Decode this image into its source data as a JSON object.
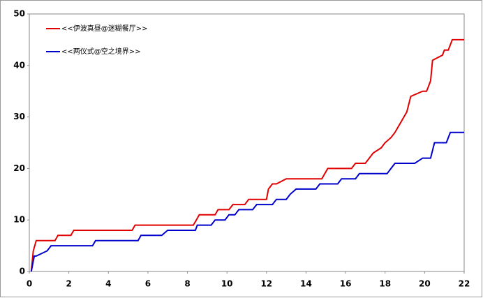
{
  "chart_data": {
    "type": "line",
    "xlim": [
      0,
      22
    ],
    "xticks": [
      0,
      2,
      4,
      6,
      8,
      10,
      12,
      14,
      16,
      18,
      20,
      22
    ],
    "ylim": [
      0,
      50
    ],
    "yticks": [
      0,
      10,
      20,
      30,
      40,
      50
    ],
    "grid": false,
    "legend": "upper left",
    "series": [
      {
        "name": "<<伊波真昼@迷糊餐厅>>",
        "color": "#e00000",
        "x": [
          0.1,
          0.2,
          0.35,
          0.5,
          1.3,
          1.45,
          2.1,
          2.25,
          5.2,
          5.35,
          8.3,
          8.45,
          8.6,
          9.4,
          9.55,
          10.1,
          10.3,
          10.9,
          11.1,
          12.0,
          12.1,
          12.3,
          12.5,
          13.0,
          13.1,
          14.8,
          15.1,
          16.3,
          16.5,
          17.0,
          17.4,
          17.8,
          18.0,
          18.3,
          18.5,
          18.8,
          19.1,
          19.3,
          19.9,
          20.1,
          20.3,
          20.4,
          20.9,
          21.0,
          21.2,
          21.4,
          22.0
        ],
        "values": [
          0,
          4,
          6,
          6,
          6,
          7,
          7,
          8,
          8,
          9,
          9,
          10,
          11,
          11,
          12,
          12,
          13,
          13,
          14,
          14,
          16,
          17,
          17,
          18,
          18,
          18,
          20,
          20,
          21,
          21,
          23,
          24,
          25,
          26,
          27,
          29,
          31,
          34,
          35,
          35,
          37,
          41,
          42,
          43,
          43,
          45,
          45
        ]
      },
      {
        "name": "<<两仪式@空之境界>>",
        "color": "#0000cc",
        "x": [
          0.1,
          0.25,
          0.35,
          0.9,
          1.1,
          3.2,
          3.35,
          5.5,
          5.65,
          6.7,
          7.0,
          8.4,
          8.5,
          9.2,
          9.4,
          9.9,
          10.1,
          10.4,
          10.6,
          11.3,
          11.5,
          12.3,
          12.5,
          13.0,
          13.2,
          13.5,
          14.5,
          14.7,
          15.6,
          15.8,
          16.5,
          16.7,
          18.1,
          18.3,
          18.5,
          19.5,
          19.9,
          20.3,
          20.5,
          21.1,
          21.3,
          22.0
        ],
        "values": [
          0,
          3,
          3,
          4,
          5,
          5,
          6,
          6,
          7,
          7,
          8,
          8,
          9,
          9,
          10,
          10,
          11,
          11,
          12,
          12,
          13,
          13,
          14,
          14,
          15,
          16,
          16,
          17,
          17,
          18,
          18,
          19,
          19,
          20,
          21,
          21,
          22,
          22,
          25,
          25,
          27,
          27
        ]
      }
    ]
  }
}
